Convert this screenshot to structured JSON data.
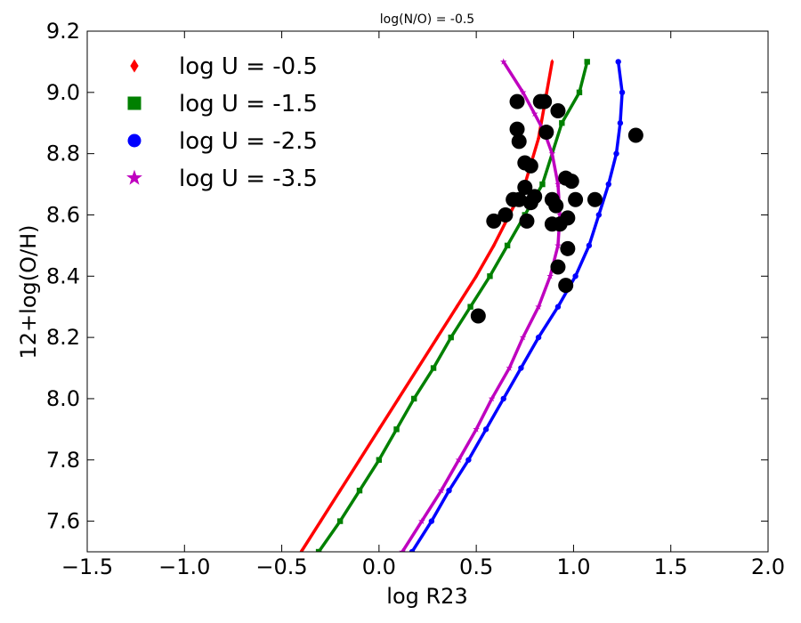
{
  "chart_data": {
    "type": "line",
    "title": "log(N/O) = -0.5",
    "xlabel": "log R23",
    "ylabel": "12+log(O/H)",
    "xlim": [
      -1.5,
      2.0
    ],
    "ylim": [
      7.5,
      9.2
    ],
    "xticks": [
      -1.5,
      -1.0,
      -0.5,
      0.0,
      0.5,
      1.0,
      1.5,
      2.0
    ],
    "xtick_labels": [
      "−1.5",
      "−1.0",
      "−0.5",
      "0.0",
      "0.5",
      "1.0",
      "1.5",
      "2.0"
    ],
    "yticks": [
      7.6,
      7.8,
      8.0,
      8.2,
      8.4,
      8.6,
      8.8,
      9.0,
      9.2
    ],
    "ytick_labels": [
      "7.6",
      "7.8",
      "8.0",
      "8.2",
      "8.4",
      "8.6",
      "8.8",
      "9.0",
      "9.2"
    ],
    "legend_position": "top-left",
    "series": [
      {
        "name": "log U = -0.5",
        "color": "#ff0000",
        "marker": "diamond",
        "x": [
          -0.4,
          -0.3,
          -0.2,
          -0.1,
          0.0,
          0.1,
          0.2,
          0.3,
          0.4,
          0.5,
          0.59,
          0.67,
          0.75,
          0.82,
          0.89
        ],
        "y": [
          7.5,
          7.6,
          7.7,
          7.8,
          7.9,
          8.0,
          8.1,
          8.2,
          8.3,
          8.4,
          8.5,
          8.6,
          8.7,
          8.85,
          9.1
        ]
      },
      {
        "name": "log U = -1.5",
        "color": "#008000",
        "marker": "square",
        "x": [
          -0.31,
          -0.2,
          -0.1,
          0.0,
          0.09,
          0.18,
          0.28,
          0.37,
          0.47,
          0.57,
          0.66,
          0.75,
          0.84,
          0.94,
          1.03,
          1.07
        ],
        "y": [
          7.5,
          7.6,
          7.7,
          7.8,
          7.9,
          8.0,
          8.1,
          8.2,
          8.3,
          8.4,
          8.5,
          8.6,
          8.7,
          8.9,
          9.0,
          9.1
        ]
      },
      {
        "name": "log U = -2.5",
        "color": "#0000ff",
        "marker": "circle",
        "x": [
          0.17,
          0.27,
          0.36,
          0.46,
          0.55,
          0.64,
          0.73,
          0.82,
          0.92,
          1.01,
          1.08,
          1.13,
          1.18,
          1.22,
          1.24,
          1.25,
          1.23
        ],
        "y": [
          7.5,
          7.6,
          7.7,
          7.8,
          7.9,
          8.0,
          8.1,
          8.2,
          8.3,
          8.4,
          8.5,
          8.6,
          8.7,
          8.8,
          8.9,
          9.0,
          9.1
        ]
      },
      {
        "name": "log U = -3.5",
        "color": "#bf00bf",
        "marker": "star",
        "x": [
          0.12,
          0.22,
          0.32,
          0.41,
          0.5,
          0.58,
          0.67,
          0.74,
          0.82,
          0.88,
          0.92,
          0.93,
          0.92,
          0.89,
          0.85,
          0.8,
          0.74,
          0.64
        ],
        "y": [
          7.5,
          7.6,
          7.7,
          7.8,
          7.9,
          8.0,
          8.1,
          8.2,
          8.3,
          8.4,
          8.5,
          8.6,
          8.7,
          8.8,
          8.87,
          8.93,
          9.0,
          9.1
        ]
      }
    ],
    "observations": {
      "name": "data points",
      "color": "#000000",
      "marker": "circle",
      "x": [
        0.71,
        0.85,
        0.83,
        0.92,
        0.71,
        0.86,
        0.72,
        0.75,
        0.78,
        1.32,
        0.96,
        0.99,
        0.75,
        0.8,
        0.69,
        0.72,
        0.89,
        0.78,
        0.91,
        1.01,
        1.11,
        0.65,
        0.59,
        0.76,
        0.97,
        0.89,
        0.93,
        0.97,
        0.92,
        0.96,
        0.51
      ],
      "y": [
        8.97,
        8.97,
        8.97,
        8.94,
        8.88,
        8.87,
        8.84,
        8.77,
        8.76,
        8.86,
        8.72,
        8.71,
        8.69,
        8.66,
        8.65,
        8.65,
        8.65,
        8.64,
        8.63,
        8.65,
        8.65,
        8.6,
        8.58,
        8.58,
        8.59,
        8.57,
        8.57,
        8.49,
        8.43,
        8.37,
        8.27
      ]
    }
  }
}
